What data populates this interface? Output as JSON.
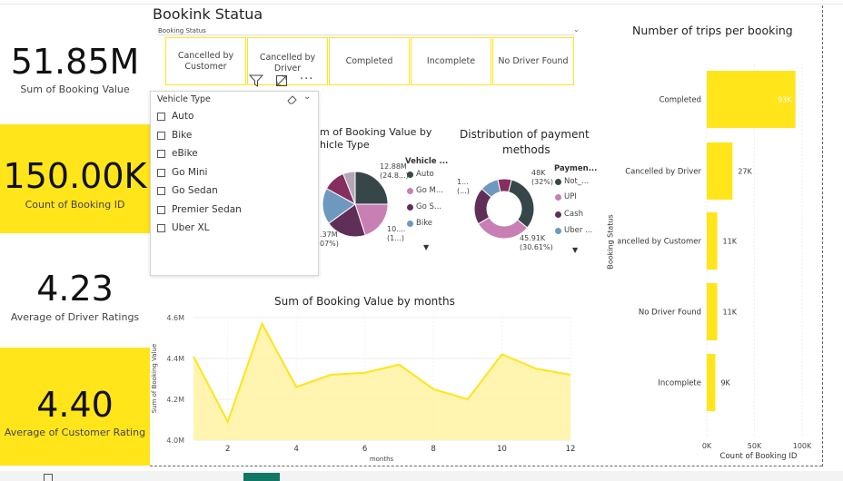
{
  "kpis": [
    {
      "value": "51.85M",
      "label": "Sum of Booking Value"
    },
    {
      "value": "150.00K",
      "label": "Count of Booking ID"
    },
    {
      "value": "4.23",
      "label": "Average of Driver Ratings"
    },
    {
      "value": "4.40",
      "label": "Average of Customer Rating"
    }
  ],
  "booking_status_slicer": {
    "title": "Bookink Statua",
    "header": "Booking Status",
    "options": [
      "Cancelled by Customer",
      "Cancelled by Driver",
      "Completed",
      "Incomplete",
      "No Driver Found"
    ]
  },
  "vehicle_slicer": {
    "title": "Vehicle Type",
    "items": [
      "Auto",
      "Bike",
      "eBike",
      "Go Mini",
      "Go Sedan",
      "Premier Sedan",
      "Uber XL"
    ]
  },
  "pie_vehicle": {
    "title_line1": "m of Booking Value by",
    "title_line2": "hicle Type",
    "legend_title": "Vehicle ...",
    "legend": [
      {
        "label": "Auto",
        "color": "#374649"
      },
      {
        "label": "Go M...",
        "color": "#C880B4"
      },
      {
        "label": "Go S...",
        "color": "#5F2F58"
      },
      {
        "label": "Bike",
        "color": "#6F98BF"
      }
    ],
    "label_top_1": "12.88M",
    "label_top_2": "(24.8...)",
    "label_right_1": "10....",
    "label_right_2": "(1...)",
    "label_left_1": ".37M",
    "label_left_2": "07%)"
  },
  "donut_payment": {
    "title_line1": "Distribution of payment",
    "title_line2": "methods",
    "legend_title": "Paymen...",
    "legend": [
      {
        "label": "Not_...",
        "color": "#374649"
      },
      {
        "label": "UPI",
        "color": "#C880B4"
      },
      {
        "label": "Cash",
        "color": "#5F2F58"
      },
      {
        "label": "Uber ...",
        "color": "#6F98BF"
      }
    ],
    "label_top_1": "48K",
    "label_top_2": "(32%)",
    "label_bottom_1": "45.91K",
    "label_bottom_2": "(30.61%)",
    "label_left_1": "1...",
    "label_left_2": "(...)"
  },
  "chart_data": [
    {
      "type": "bar",
      "orientation": "horizontal",
      "title": "Number of trips per booking",
      "xlabel": "Count of Booking ID",
      "ylabel": "Booking Status",
      "categories": [
        "Completed",
        "Cancelled by Driver",
        "Cancelled by Customer",
        "No Driver Found",
        "Incomplete"
      ],
      "values": [
        93,
        27,
        11,
        11,
        9
      ],
      "value_labels": [
        "93K",
        "27K",
        "11K",
        "11K",
        "9K"
      ],
      "xlim": [
        0,
        100
      ],
      "x_ticks": [
        "0K",
        "50K",
        "100K"
      ],
      "color": "#FFE51A"
    },
    {
      "type": "area",
      "title": "Sum of Booking Value by months",
      "xlabel": "months",
      "ylabel": "Sum of Booking Value",
      "x": [
        1,
        2,
        3,
        4,
        5,
        6,
        7,
        8,
        9,
        10,
        11,
        12
      ],
      "values": [
        4.41,
        4.09,
        4.57,
        4.26,
        4.32,
        4.33,
        4.37,
        4.25,
        4.2,
        4.42,
        4.35,
        4.32
      ],
      "ylim": [
        4.0,
        4.6
      ],
      "y_ticks": [
        "4.0M",
        "4.2M",
        "4.4M",
        "4.6M"
      ],
      "x_ticks": [
        "2",
        "4",
        "6",
        "8",
        "10",
        "12"
      ],
      "color": "#FFE51A"
    }
  ]
}
